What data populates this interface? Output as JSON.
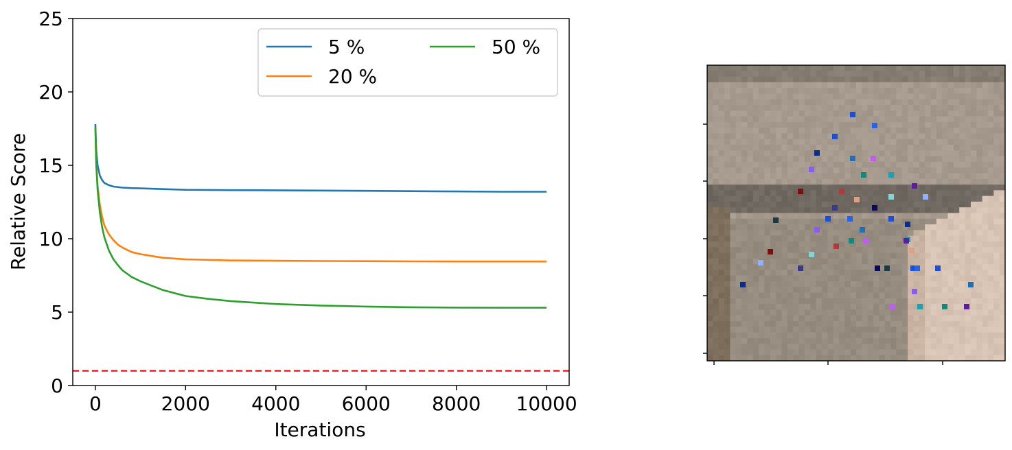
{
  "chart_data": {
    "type": "line",
    "title": "",
    "xlabel": "Iterations",
    "ylabel": "Relative Score",
    "xlim": [
      -500,
      10500
    ],
    "ylim": [
      0,
      25
    ],
    "xticks": [
      0,
      2000,
      4000,
      6000,
      8000,
      10000
    ],
    "xtick_labels": [
      "0",
      "2000",
      "4000",
      "6000",
      "8000",
      "10000"
    ],
    "yticks": [
      0,
      5,
      10,
      15,
      20,
      25
    ],
    "ytick_labels": [
      "0",
      "5",
      "10",
      "15",
      "20",
      "25"
    ],
    "grid": false,
    "legend_position": "top-right",
    "legend_columns": 2,
    "reference_line": {
      "y": 1,
      "color": "#e8181a",
      "style": "dashed"
    },
    "series": [
      {
        "name": "5 %",
        "color": "#1f77b4",
        "x": [
          0,
          20,
          50,
          100,
          150,
          200,
          300,
          400,
          600,
          800,
          1000,
          1500,
          2000,
          3000,
          4000,
          5000,
          6000,
          7000,
          8000,
          9000,
          10000
        ],
        "y": [
          17.8,
          16.0,
          15.0,
          14.3,
          14.0,
          13.8,
          13.65,
          13.55,
          13.48,
          13.45,
          13.43,
          13.38,
          13.33,
          13.31,
          13.3,
          13.28,
          13.26,
          13.24,
          13.22,
          13.2,
          13.2
        ]
      },
      {
        "name": "20 %",
        "color": "#ff7f0e",
        "x": [
          0,
          20,
          50,
          100,
          150,
          200,
          300,
          400,
          500,
          600,
          800,
          1000,
          1500,
          2000,
          3000,
          4000,
          5000,
          6000,
          7000,
          8000,
          9000,
          10000
        ],
        "y": [
          17.5,
          15.2,
          13.6,
          12.3,
          11.5,
          10.9,
          10.3,
          9.9,
          9.6,
          9.4,
          9.1,
          8.95,
          8.7,
          8.6,
          8.52,
          8.5,
          8.48,
          8.47,
          8.46,
          8.45,
          8.45,
          8.45
        ]
      },
      {
        "name": "50 %",
        "color": "#2ca02c",
        "x": [
          0,
          20,
          50,
          100,
          150,
          200,
          300,
          400,
          500,
          600,
          800,
          1000,
          1500,
          2000,
          2500,
          3000,
          4000,
          5000,
          6000,
          7000,
          8000,
          9000,
          10000
        ],
        "y": [
          17.6,
          15.0,
          13.3,
          11.8,
          10.8,
          10.1,
          9.2,
          8.6,
          8.2,
          7.85,
          7.4,
          7.1,
          6.5,
          6.1,
          5.9,
          5.75,
          5.55,
          5.45,
          5.38,
          5.33,
          5.31,
          5.3,
          5.3
        ]
      }
    ]
  },
  "photo": {
    "description_free": true,
    "palette": {
      "wall_light": "#a59a8d",
      "wall_mid": "#978c80",
      "shadow_band": "#6f6961",
      "ceiling": "#857c72",
      "floor_light": "#d8c4b4",
      "floor_mid": "#c9b4a4",
      "left_dark": "#7e6f5d",
      "edge_dark": "#5f5a55"
    }
  }
}
